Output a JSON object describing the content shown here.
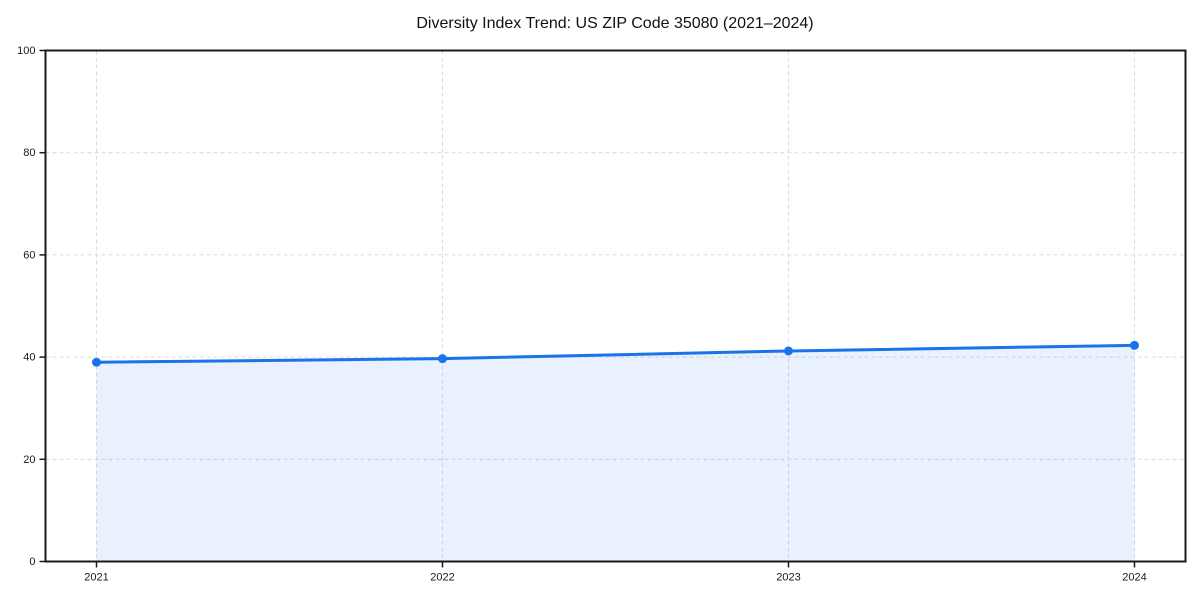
{
  "page": {
    "background": "#ffffff"
  },
  "chart_data": {
    "type": "area",
    "title": "Diversity Index Trend: US ZIP Code 35080 (2021–2024)",
    "series_name": "Diversity Index",
    "categories": [
      "2021",
      "2022",
      "2023",
      "2024"
    ],
    "values": [
      39.0,
      39.7,
      41.2,
      42.3
    ],
    "xlabel": "",
    "ylabel": "",
    "ylim": [
      0,
      100
    ],
    "yticks": [
      0,
      20,
      40,
      60,
      80,
      100
    ],
    "grid": true,
    "grid_style": "dashed",
    "legend_position": "none",
    "colors": {
      "line": "#1a73e8",
      "marker": "#1a73e8",
      "fill": "rgba(26, 115, 232, 0.10)",
      "grid": "#dcdcdc",
      "spine": "#1a1a1a",
      "tick": "#1a1a1a",
      "text": "#111111",
      "background": "#ffffff"
    }
  }
}
